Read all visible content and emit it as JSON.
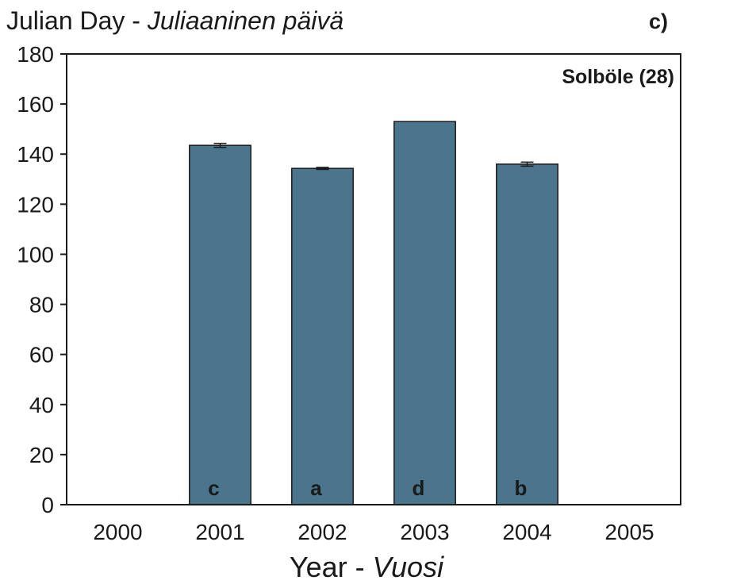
{
  "chart_data": {
    "type": "bar",
    "title": "",
    "ylabel": "Julian Day",
    "ylabel_alt": "Juliaaninen päivä",
    "ylabel_sep": " - ",
    "xlabel": "Year",
    "xlabel_alt": "Vuosi",
    "xlabel_sep": " - ",
    "panel_label": "c)",
    "annotation": "Solböle (28)",
    "annotation_position": "top-right",
    "categories": [
      "2000",
      "2001",
      "2002",
      "2003",
      "2004",
      "2005"
    ],
    "series": [
      {
        "values": [
          null,
          143.5,
          134.3,
          153.0,
          136.0,
          null
        ],
        "error": [
          null,
          0.8,
          0.4,
          0,
          0.8,
          null
        ],
        "letters": [
          "",
          "c",
          "a",
          "d",
          "b",
          ""
        ],
        "color": "#4a758d"
      }
    ],
    "ylim": [
      0,
      180
    ],
    "yticks": [
      0,
      20,
      40,
      60,
      80,
      100,
      120,
      140,
      160,
      180
    ],
    "grid": false,
    "legend": "none"
  }
}
